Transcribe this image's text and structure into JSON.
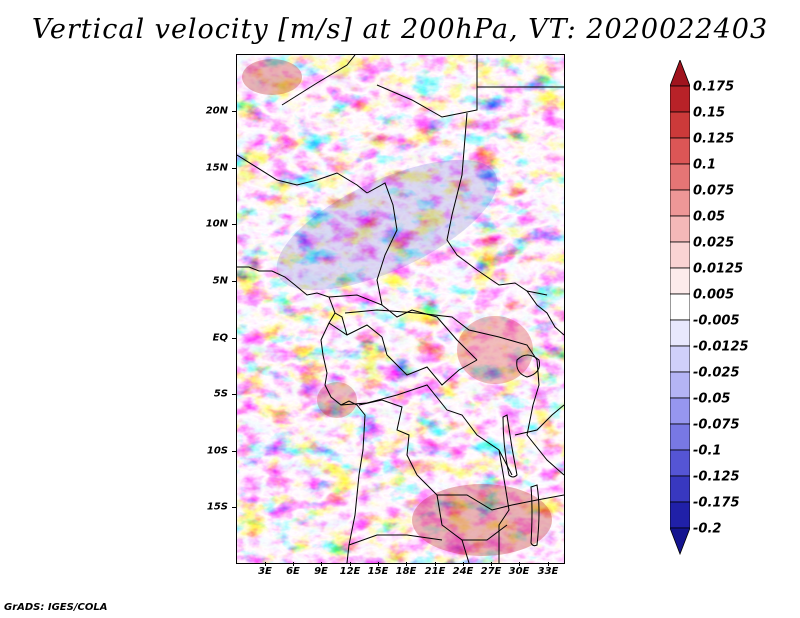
{
  "title": "Vertical velocity [m/s] at 200hPa, VT: 2020022403",
  "map": {
    "variable": "Vertical velocity",
    "units": "m/s",
    "level": "200hPa",
    "valid_time": "2020022403",
    "lat_labels": [
      "20N",
      "15N",
      "10N",
      "5N",
      "EQ",
      "5S",
      "10S",
      "15S"
    ],
    "lon_labels": [
      "3E",
      "6E",
      "9E",
      "12E",
      "15E",
      "18E",
      "21E",
      "24E",
      "27E",
      "30E",
      "33E"
    ],
    "lat_values": [
      20,
      15,
      10,
      5,
      0,
      -5,
      -10,
      -15
    ],
    "lon_values": [
      3,
      6,
      9,
      12,
      15,
      18,
      21,
      24,
      27,
      30,
      33
    ],
    "extent": {
      "lon_min": 0.2,
      "lon_max": 34.8,
      "lat_min": -19.7,
      "lat_max": 24.7
    }
  },
  "colorbar": {
    "levels": [
      "0.175",
      "0.15",
      "0.125",
      "0.1",
      "0.075",
      "0.05",
      "0.025",
      "0.0125",
      "0.005",
      "-0.005",
      "-0.0125",
      "-0.025",
      "-0.05",
      "-0.075",
      "-0.1",
      "-0.125",
      "-0.175",
      "-0.2"
    ],
    "colors": [
      "#a0141e",
      "#b82228",
      "#cc3a3a",
      "#dc5656",
      "#e57575",
      "#ee9797",
      "#f5b8b8",
      "#fad3d3",
      "#fdebeb",
      "#ffffff",
      "#e8e8fd",
      "#d0d0fa",
      "#b4b4f5",
      "#9696ef",
      "#7878e4",
      "#5555d5",
      "#3838c0",
      "#2020a8",
      "#141490"
    ]
  },
  "footer": "GrADS: IGES/COLA"
}
